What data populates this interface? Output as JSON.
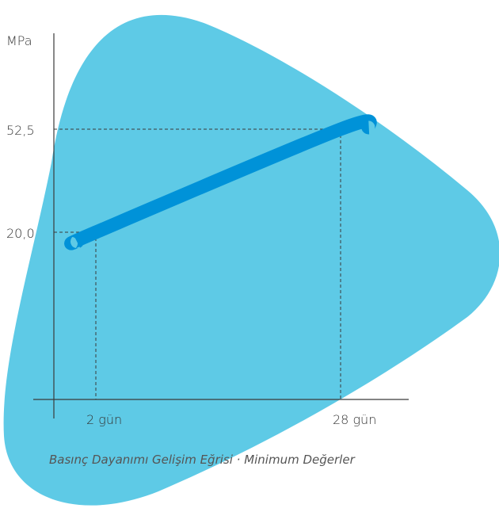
{
  "colors": {
    "background_shape": "#5ecae6",
    "curve": "#0092d8",
    "axis": "#3a3a3a",
    "guide": "#3a3a3a",
    "text": "#333333",
    "caption": "#555555"
  },
  "chart_data": {
    "type": "line",
    "ylabel": "MPa",
    "xlabel": "",
    "title": "",
    "caption": "Basınç Dayanımı Gelişim Eğrisi · Minimum Değerler",
    "y_ticks": [
      {
        "value": 20.0,
        "label": "20,0"
      },
      {
        "value": 52.5,
        "label": "52,5"
      }
    ],
    "x_ticks": [
      {
        "value": 2,
        "label": "2 gün"
      },
      {
        "value": 28,
        "label": "28 gün"
      }
    ],
    "series": [
      {
        "x": [
          0,
          2,
          28,
          31
        ],
        "y": [
          17,
          20.0,
          52.5,
          53
        ]
      }
    ],
    "highlight_points": [
      {
        "x": 2,
        "y": 20.0
      },
      {
        "x": 28,
        "y": 52.5
      }
    ],
    "grid": false
  }
}
